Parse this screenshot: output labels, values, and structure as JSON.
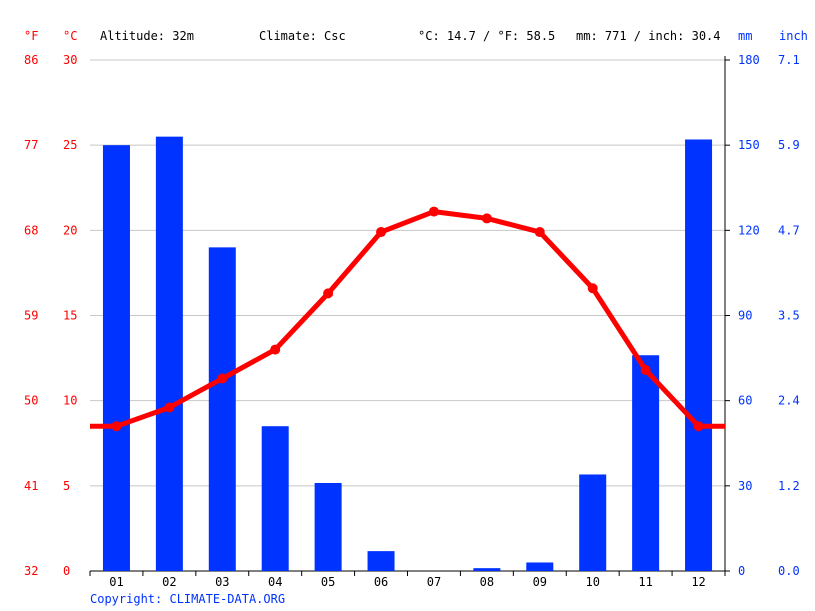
{
  "header": {
    "f_unit": "°F",
    "c_unit": "°C",
    "altitude": "Altitude: 32m",
    "climate": "Climate: Csc",
    "temp_avg": "°C: 14.7 / °F: 58.5",
    "precip_total": "mm: 771 / inch: 30.4",
    "mm_unit": "mm",
    "inch_unit": "inch"
  },
  "footer": {
    "copyright": "Copyright: CLIMATE-DATA.ORG"
  },
  "colors": {
    "temperature": "#ff0000",
    "precipitation": "#0033ff"
  },
  "chart_data": {
    "type": "bar",
    "categories": [
      "01",
      "02",
      "03",
      "04",
      "05",
      "06",
      "07",
      "08",
      "09",
      "10",
      "11",
      "12"
    ],
    "series": [
      {
        "type": "bar",
        "axis": "right",
        "values": [
          150,
          153,
          114,
          51,
          31,
          7,
          0,
          1,
          3,
          34,
          76,
          152
        ]
      },
      {
        "type": "line",
        "axis": "left",
        "values": [
          8.5,
          9.6,
          11.3,
          13.0,
          16.3,
          19.9,
          21.1,
          20.7,
          19.9,
          16.6,
          11.8,
          8.5
        ]
      }
    ],
    "left_ticks_c": [
      "30",
      "25",
      "20",
      "15",
      "10",
      "5",
      "0"
    ],
    "left_ticks_f": [
      "86",
      "77",
      "68",
      "59",
      "50",
      "41",
      "32"
    ],
    "right_ticks_mm": [
      "180",
      "150",
      "120",
      "90",
      "60",
      "30",
      "0"
    ],
    "right_ticks_inch": [
      "7.1",
      "5.9",
      "4.7",
      "3.5",
      "2.4",
      "1.2",
      "0.0"
    ],
    "ylim_left": [
      0,
      30
    ],
    "ylim_right": [
      0,
      180
    ],
    "grid": true
  }
}
